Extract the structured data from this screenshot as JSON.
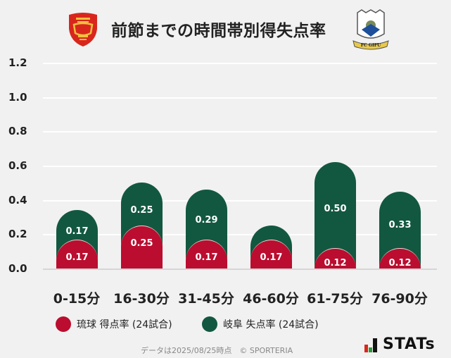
{
  "header": {
    "title": "前節までの時間帯別得失点率",
    "left_team_logo": "ryukyu-shisa-crest",
    "right_team_logo": "fc-gifu-crest"
  },
  "colors": {
    "ryukyu": "#bb0d2f",
    "gifu": "#125840",
    "background": "#f1f1f1"
  },
  "chart_data": {
    "type": "bar",
    "stacked": true,
    "title": "前節までの時間帯別得失点率",
    "categories": [
      "0-15分",
      "16-30分",
      "31-45分",
      "46-60分",
      "61-75分",
      "76-90分"
    ],
    "series": [
      {
        "name": "琉球 得点率 (24試合)",
        "color": "#bb0d2f",
        "values": [
          0.17,
          0.25,
          0.17,
          0.17,
          0.12,
          0.12
        ],
        "labels": [
          "0.17",
          "0.25",
          "0.17",
          "0.17",
          "0.12",
          "0.12"
        ]
      },
      {
        "name": "岐阜 失点率 (24試合)",
        "color": "#125840",
        "values": [
          0.17,
          0.25,
          0.29,
          0.08,
          0.5,
          0.33
        ],
        "labels": [
          "0.17",
          "0.25",
          "0.29",
          "",
          "0.50",
          "0.33"
        ]
      }
    ],
    "yticks": [
      "0.0",
      "0.2",
      "0.4",
      "0.6",
      "0.8",
      "1.0",
      "1.2"
    ],
    "ylim": [
      0,
      1.2
    ],
    "grid": true,
    "legend_position": "bottom"
  },
  "legend": {
    "ryukyu": "琉球 得点率 (24試合)",
    "gifu": "岐阜 失点率 (24試合)"
  },
  "footer": {
    "note": "データは2025/08/25時点　© SPORTERIA",
    "brand": "STATs"
  }
}
